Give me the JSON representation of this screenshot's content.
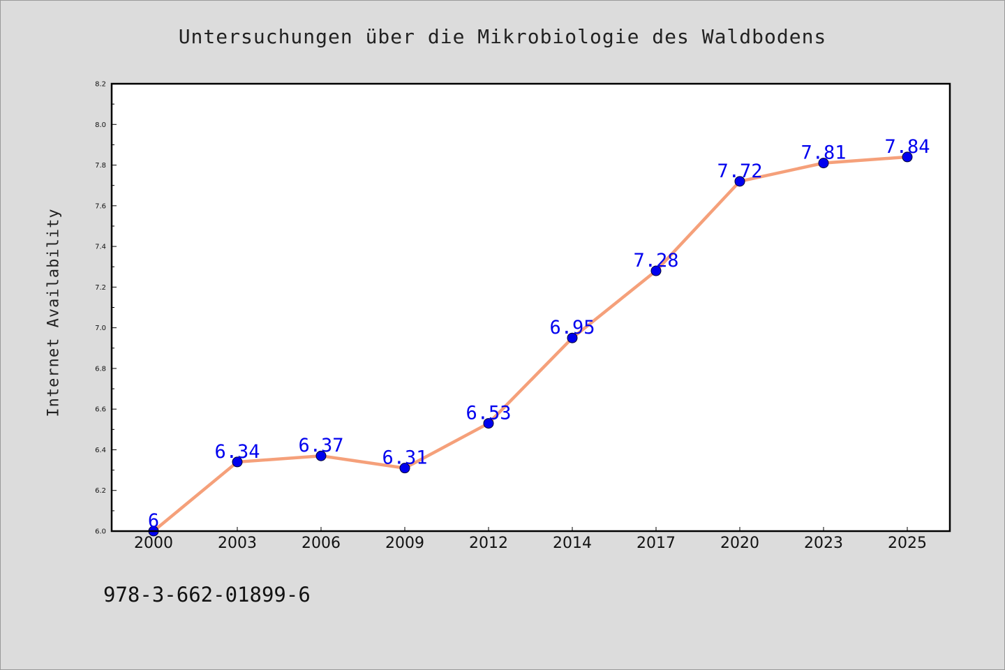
{
  "chart_data": {
    "type": "line",
    "title": "Untersuchungen über die Mikrobiologie des Waldbodens",
    "xlabel": "",
    "ylabel": "Internet Availability",
    "categories": [
      "2000",
      "2003",
      "2006",
      "2009",
      "2012",
      "2014",
      "2017",
      "2020",
      "2023",
      "2025"
    ],
    "series": [
      {
        "values": [
          6,
          6.34,
          6.37,
          6.31,
          6.53,
          6.95,
          7.28,
          7.72,
          7.81,
          7.84
        ],
        "data_labels": [
          "6",
          "6.34",
          "6.37",
          "6.31",
          "6.53",
          "6.95",
          "7.28",
          "7.72",
          "7.81",
          "7.84"
        ],
        "line_color": "#f5a07a",
        "marker_color": "#0000ee",
        "label_color": "#0000ee"
      }
    ],
    "ylim": [
      6.0,
      8.2
    ],
    "y_ticks": [
      "6.0",
      "6.2",
      "6.4",
      "6.6",
      "6.8",
      "7.0",
      "7.2",
      "7.4",
      "7.6",
      "7.8",
      "8.0",
      "8.2"
    ],
    "grid": false,
    "legend": "none"
  },
  "footer": {
    "isbn": "978-3-662-01899-6"
  },
  "colors": {
    "background": "#dcdcdc",
    "plot_background": "#ffffff",
    "axis": "#000000"
  }
}
